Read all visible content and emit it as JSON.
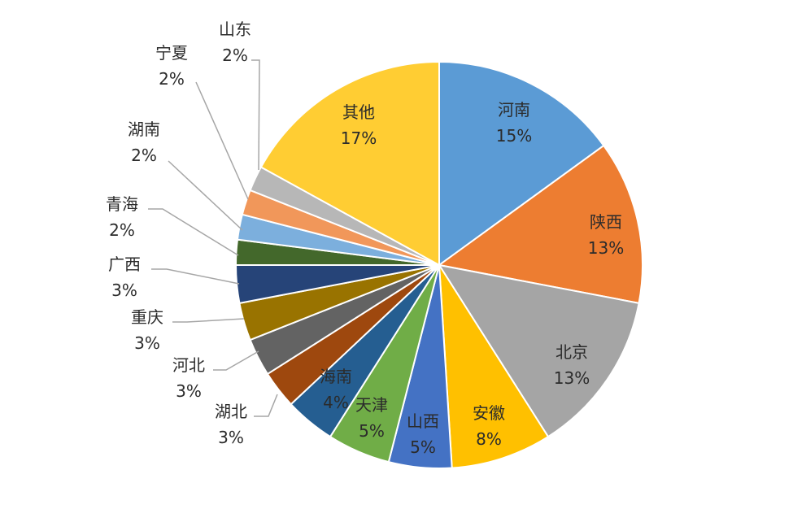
{
  "chart_data": {
    "type": "pie",
    "title": "",
    "slices": [
      {
        "name": "河南",
        "label": "15%",
        "value": 15,
        "color": "#5B9BD5"
      },
      {
        "name": "陕西",
        "label": "13%",
        "value": 13,
        "color": "#ED7D31"
      },
      {
        "name": "北京",
        "label": "13%",
        "value": 13,
        "color": "#A5A5A5"
      },
      {
        "name": "安徽",
        "label": "8%",
        "value": 8,
        "color": "#FFC000"
      },
      {
        "name": "山西",
        "label": "5%",
        "value": 5,
        "color": "#4472C4"
      },
      {
        "name": "天津",
        "label": "5%",
        "value": 5,
        "color": "#70AD47"
      },
      {
        "name": "海南",
        "label": "4%",
        "value": 4,
        "color": "#255E91"
      },
      {
        "name": "湖北",
        "label": "3%",
        "value": 3,
        "color": "#9E480E"
      },
      {
        "name": "河北",
        "label": "3%",
        "value": 3,
        "color": "#636363"
      },
      {
        "name": "重庆",
        "label": "3%",
        "value": 3,
        "color": "#997300"
      },
      {
        "name": "广西",
        "label": "3%",
        "value": 3,
        "color": "#264478"
      },
      {
        "name": "青海",
        "label": "2%",
        "value": 2,
        "color": "#43682B"
      },
      {
        "name": "湖南",
        "label": "2%",
        "value": 2,
        "color": "#7CAFDD"
      },
      {
        "name": "宁夏",
        "label": "2%",
        "value": 2,
        "color": "#F1975A"
      },
      {
        "name": "山东",
        "label": "2%",
        "value": 2,
        "color": "#B7B7B7"
      },
      {
        "name": "其他",
        "label": "17%",
        "value": 17,
        "color": "#FFCD33"
      }
    ]
  }
}
